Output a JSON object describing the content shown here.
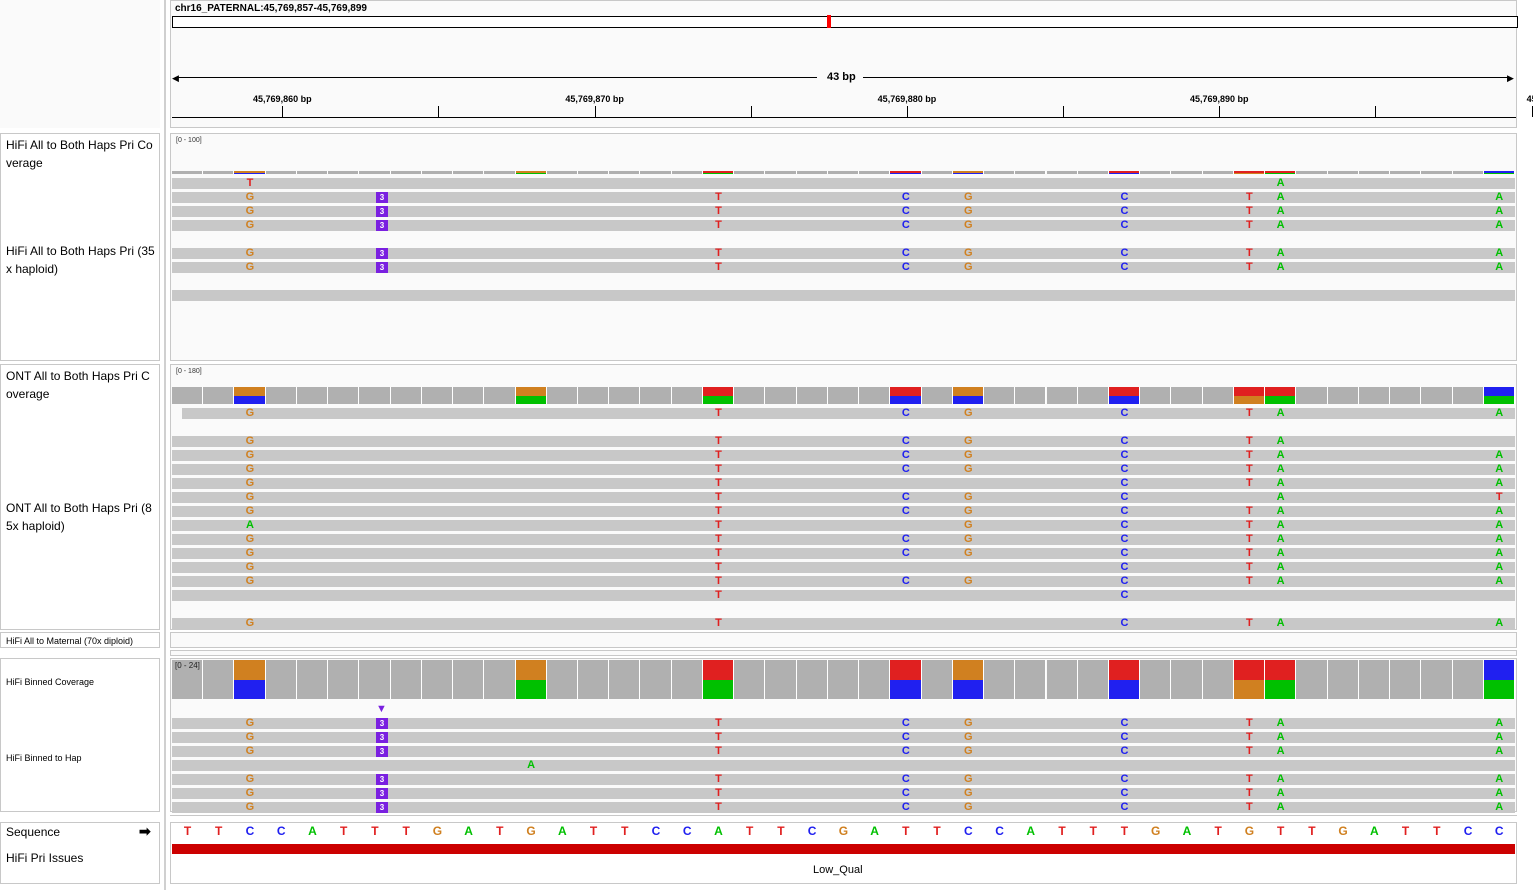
{
  "locus": "chr16_PATERNAL:45,769,857-45,769,899",
  "span_label": "43 bp",
  "ticks": [
    {
      "label": "45,769,860 bp",
      "col": 3.5
    },
    {
      "label": "45,769,870 bp",
      "col": 13.5
    },
    {
      "label": "45,769,880 bp",
      "col": 23.5
    },
    {
      "label": "45,769,890 bp",
      "col": 33.5
    },
    {
      "label": "45",
      "col": 43.5
    }
  ],
  "minor_ticks": [
    8.5,
    18.5,
    28.5,
    38.5
  ],
  "tracks": {
    "hifi_cov_name": "HiFi All to Both Haps Pri Coverage",
    "hifi_cov_range": "[0 - 100]",
    "hifi_aln_name": "HiFi All to Both Haps Pri (35x haploid)",
    "ont_cov_name": "ONT All to Both Haps Pri Coverage",
    "ont_cov_range": "[0 - 180]",
    "ont_aln_name": "ONT All to Both Haps Pri (85x haploid)",
    "maternal_name": "HiFi All to Maternal (70x diploid)",
    "binned_cov_name": "HiFi Binned Coverage",
    "binned_cov_range": "[0 - 24]",
    "binned_aln_name": "HiFi Binned to Hap",
    "sequence_name": "Sequence",
    "issues_name": "HiFi Pri Issues",
    "issue_label": "Low_Qual"
  },
  "colors": {
    "A": "#00c000",
    "C": "#2020f0",
    "G": "#d08020",
    "T": "#e02020",
    "ins": "#7a20e0",
    "issue": "#cc0000"
  },
  "sequence": "TTCCATTTGATGATTCCATTCGATTCCATTTGATGTTGATTCC",
  "insertion": {
    "after_col": 6.5,
    "length": "3"
  },
  "coverage_alleles": [
    {
      "col": 2,
      "top": "G",
      "bottom": "C",
      "frac": 0.5
    },
    {
      "col": 11,
      "top": "G",
      "bottom": "A",
      "frac": 0.5
    },
    {
      "col": 17,
      "top": "T",
      "bottom": "A",
      "frac": 0.5
    },
    {
      "col": 23,
      "top": "T",
      "bottom": "C",
      "frac": 0.5
    },
    {
      "col": 25,
      "top": "G",
      "bottom": "C",
      "frac": 0.5
    },
    {
      "col": 30,
      "top": "T",
      "bottom": "C",
      "frac": 0.5
    },
    {
      "col": 34,
      "top": "T",
      "bottom": "G",
      "frac": 0.5
    },
    {
      "col": 35,
      "top": "T",
      "bottom": "A",
      "frac": 0.5
    },
    {
      "col": 42,
      "top": "C",
      "bottom": "A",
      "frac": 0.5
    }
  ],
  "hifi_reads": [
    {
      "row": 0,
      "mm": {
        "2": "T",
        "35": "A"
      }
    },
    {
      "row": 1,
      "mm": {
        "2": "G",
        "17": "T",
        "23": "C",
        "25": "G",
        "30": "C",
        "34": "T",
        "35": "A",
        "42": "A"
      },
      "ins": true
    },
    {
      "row": 2,
      "mm": {
        "2": "G",
        "17": "T",
        "23": "C",
        "25": "G",
        "30": "C",
        "34": "T",
        "35": "A",
        "42": "A"
      },
      "ins": true
    },
    {
      "row": 3,
      "mm": {
        "2": "G",
        "17": "T",
        "23": "C",
        "25": "G",
        "30": "C",
        "34": "T",
        "35": "A",
        "42": "A"
      },
      "ins": true
    },
    {
      "row": 5,
      "mm": {
        "2": "G",
        "17": "T",
        "23": "C",
        "25": "G",
        "30": "C",
        "34": "T",
        "35": "A",
        "42": "A"
      },
      "ins": true
    },
    {
      "row": 6,
      "mm": {
        "2": "G",
        "17": "T",
        "23": "C",
        "25": "G",
        "30": "C",
        "34": "T",
        "35": "A",
        "42": "A"
      },
      "ins": true
    },
    {
      "row": 8,
      "mm": {}
    }
  ],
  "ont_reads": [
    {
      "row": 0,
      "mm": {
        "2": "G",
        "17": "T",
        "23": "C",
        "25": "G",
        "30": "C",
        "34": "T",
        "35": "A",
        "42": "A"
      }
    },
    {
      "row": 2,
      "mm": {
        "2": "G",
        "17": "T",
        "23": "C",
        "25": "G",
        "30": "C",
        "34": "T",
        "35": "A"
      }
    },
    {
      "row": 3,
      "mm": {
        "2": "G",
        "17": "T",
        "23": "C",
        "25": "G",
        "30": "C",
        "34": "T",
        "35": "A",
        "42": "A"
      }
    },
    {
      "row": 4,
      "mm": {
        "2": "G",
        "17": "T",
        "23": "C",
        "25": "G",
        "30": "C",
        "34": "T",
        "35": "A",
        "42": "A"
      }
    },
    {
      "row": 5,
      "mm": {
        "2": "G",
        "17": "T",
        "30": "C",
        "34": "T",
        "35": "A",
        "42": "A"
      }
    },
    {
      "row": 6,
      "mm": {
        "2": "G",
        "17": "T",
        "23": "C",
        "25": "G",
        "30": "C",
        "35": "A",
        "42": "T"
      }
    },
    {
      "row": 7,
      "mm": {
        "2": "G",
        "17": "T",
        "23": "C",
        "25": "G",
        "30": "C",
        "34": "T",
        "35": "A",
        "42": "A"
      }
    },
    {
      "row": 8,
      "mm": {
        "2": "A",
        "17": "T",
        "25": "G",
        "30": "C",
        "34": "T",
        "35": "A",
        "42": "A"
      }
    },
    {
      "row": 9,
      "mm": {
        "2": "G",
        "17": "T",
        "23": "C",
        "25": "G",
        "30": "C",
        "34": "T",
        "35": "A",
        "42": "A"
      }
    },
    {
      "row": 10,
      "mm": {
        "2": "G",
        "17": "T",
        "23": "C",
        "25": "G",
        "30": "C",
        "34": "T",
        "35": "A",
        "42": "A"
      }
    },
    {
      "row": 11,
      "mm": {
        "2": "G",
        "17": "T",
        "30": "C",
        "34": "T",
        "35": "A",
        "42": "A"
      }
    },
    {
      "row": 12,
      "mm": {
        "2": "G",
        "17": "T",
        "23": "C",
        "25": "G",
        "30": "C",
        "34": "T",
        "35": "A",
        "42": "A"
      }
    },
    {
      "row": 13,
      "mm": {
        "17": "T",
        "30": "C"
      }
    },
    {
      "row": 15,
      "mm": {
        "2": "G",
        "17": "T",
        "30": "C",
        "34": "T",
        "35": "A",
        "42": "A"
      }
    }
  ],
  "binned_reads": [
    {
      "row": 0,
      "mm": {
        "2": "G",
        "17": "T",
        "23": "C",
        "25": "G",
        "30": "C",
        "34": "T",
        "35": "A",
        "42": "A"
      },
      "ins": true
    },
    {
      "row": 1,
      "mm": {
        "2": "G",
        "17": "T",
        "23": "C",
        "25": "G",
        "30": "C",
        "34": "T",
        "35": "A",
        "42": "A"
      },
      "ins": true
    },
    {
      "row": 2,
      "mm": {
        "2": "G",
        "17": "T",
        "23": "C",
        "25": "G",
        "30": "C",
        "34": "T",
        "35": "A",
        "42": "A"
      },
      "ins": true
    },
    {
      "row": 3,
      "mm": {
        "11": "A"
      }
    },
    {
      "row": 4,
      "mm": {
        "2": "G",
        "17": "T",
        "23": "C",
        "25": "G",
        "30": "C",
        "34": "T",
        "35": "A",
        "42": "A"
      },
      "ins": true
    },
    {
      "row": 5,
      "mm": {
        "2": "G",
        "17": "T",
        "23": "C",
        "25": "G",
        "30": "C",
        "34": "T",
        "35": "A",
        "42": "A"
      },
      "ins": true
    },
    {
      "row": 6,
      "mm": {
        "2": "G",
        "17": "T",
        "23": "C",
        "25": "G",
        "30": "C",
        "34": "T",
        "35": "A",
        "42": "A"
      },
      "ins": true
    }
  ]
}
